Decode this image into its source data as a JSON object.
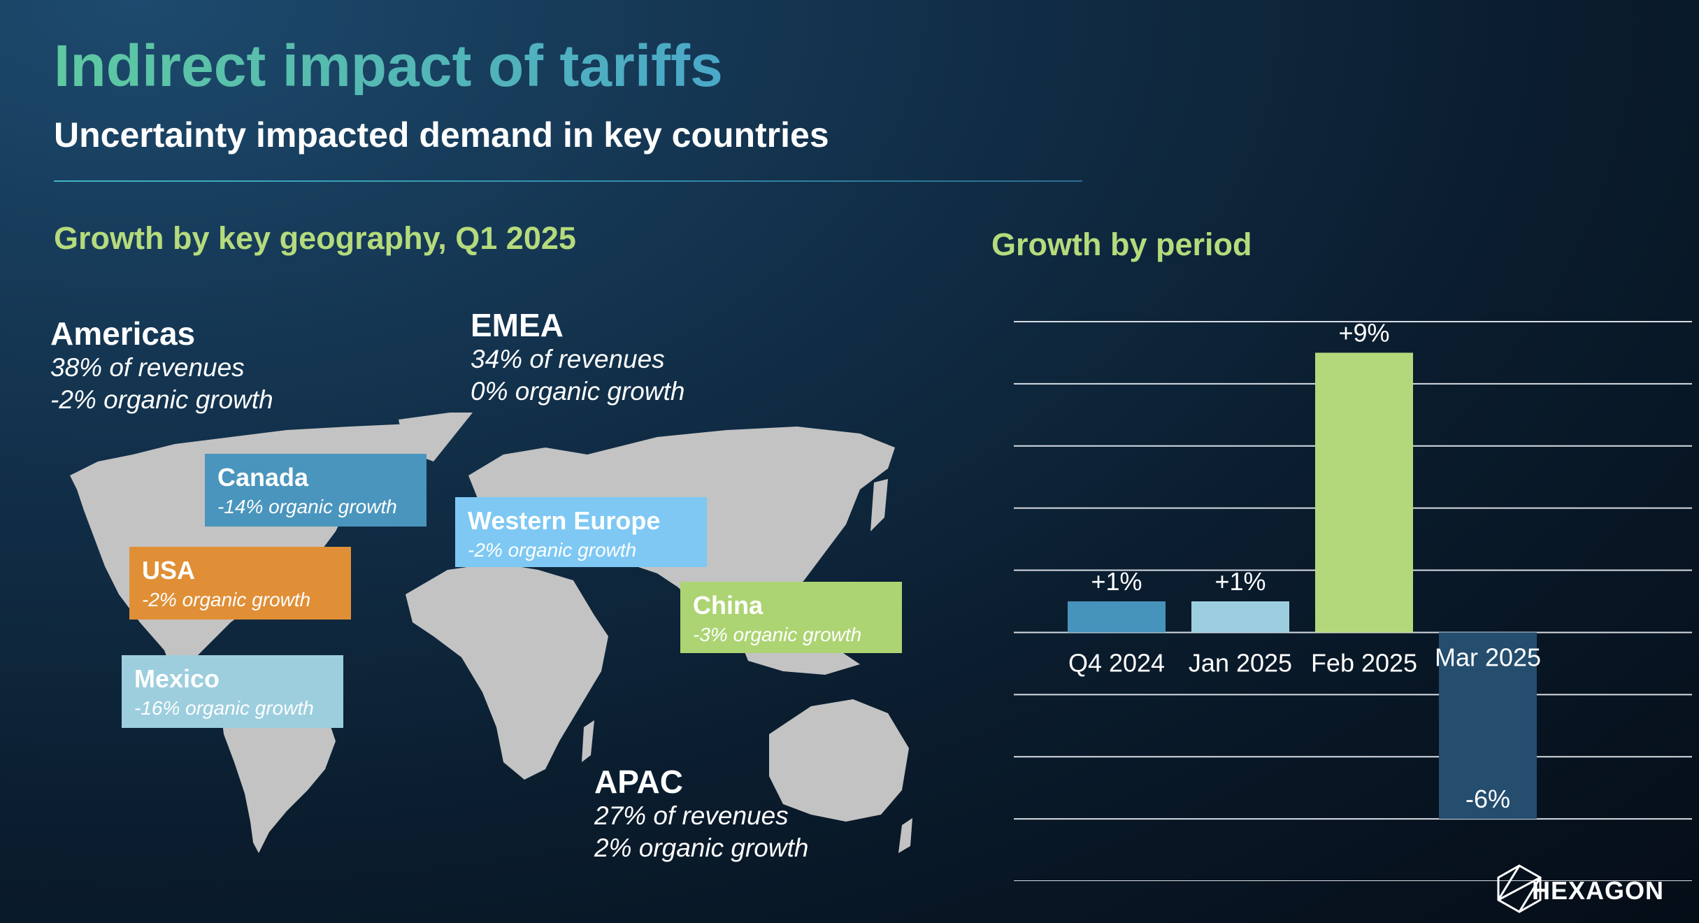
{
  "title": "Indirect impact of tariffs",
  "subtitle": "Uncertainty impacted demand in key countries",
  "geo_section_title": "Growth by key geography, Q1 2025",
  "period_section_title": "Growth by period",
  "regions": {
    "americas": {
      "name": "Americas",
      "revenue": "38% of revenues",
      "growth": "-2% organic growth"
    },
    "emea": {
      "name": "EMEA",
      "revenue": "34% of revenues",
      "growth": "0% organic growth"
    },
    "apac": {
      "name": "APAC",
      "revenue": "27% of revenues",
      "growth": "2% organic growth"
    }
  },
  "countries": {
    "canada": {
      "name": "Canada",
      "growth": "-14% organic growth",
      "color": "#4a95bd"
    },
    "usa": {
      "name": "USA",
      "growth": "-2% organic growth",
      "color": "#e08f36"
    },
    "mexico": {
      "name": "Mexico",
      "growth": "-16% organic growth",
      "color": "#9ccede"
    },
    "western_europe": {
      "name": "Western Europe",
      "growth": "-2% organic growth",
      "color": "#7ec8f3"
    },
    "china": {
      "name": "China",
      "growth": "-3% organic growth",
      "color": "#acd473"
    }
  },
  "chart_data": {
    "type": "bar",
    "title": "Growth by period",
    "categories": [
      "Q4 2024",
      "Jan 2025",
      "Feb 2025",
      "Mar 2025"
    ],
    "values": [
      1,
      1,
      9,
      -6
    ],
    "data_labels": [
      "+1%",
      "+1%",
      "+9%",
      "-6%"
    ],
    "colors": [
      "#4693bb",
      "#9dcedf",
      "#b3d87b",
      "#244d6e"
    ],
    "ylim": [
      -8,
      10
    ],
    "gridline_step": 2,
    "grid": true,
    "xlabel": "",
    "ylabel": ""
  },
  "logo": {
    "text": "HEXAGON"
  }
}
